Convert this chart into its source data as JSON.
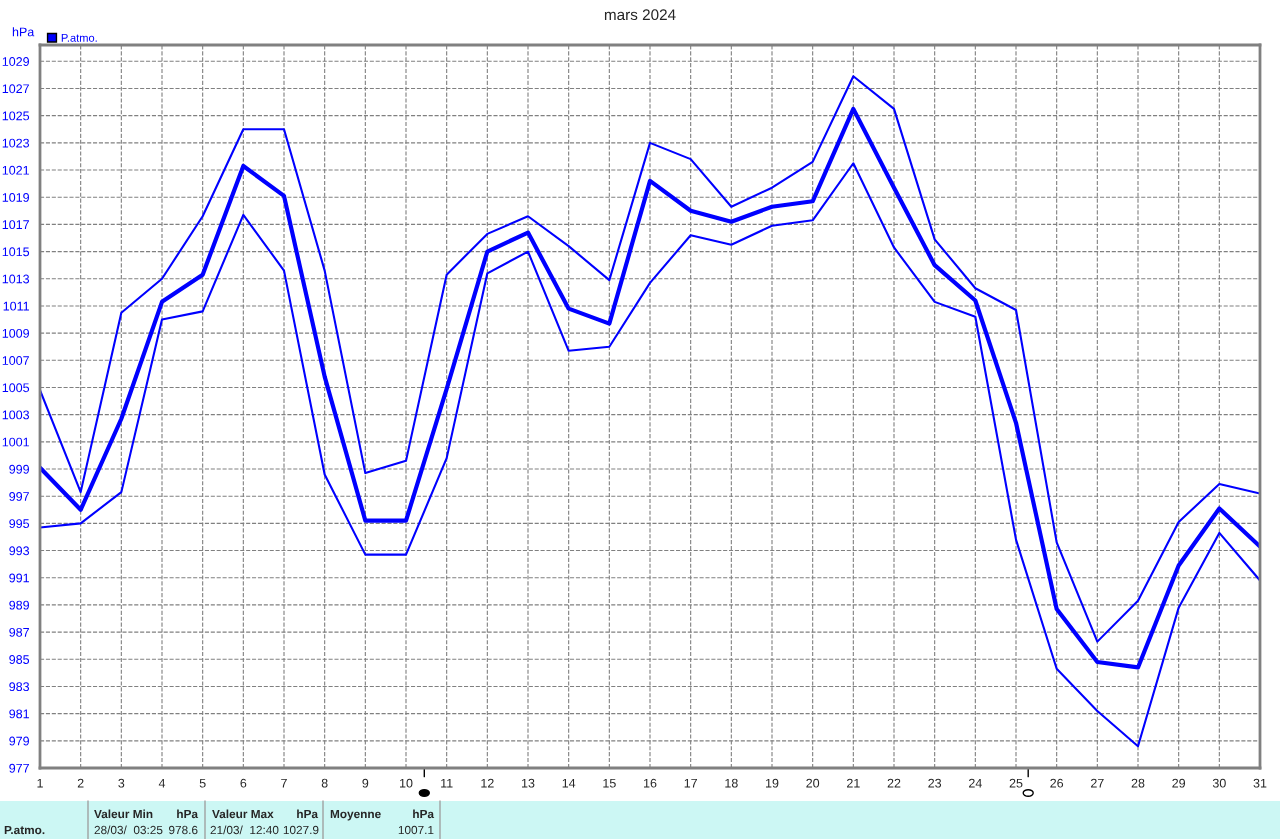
{
  "chart_data": {
    "type": "line",
    "title": "mars 2024",
    "ylabel": "hPa",
    "x": [
      1,
      2,
      3,
      4,
      5,
      6,
      7,
      8,
      9,
      10,
      11,
      12,
      13,
      14,
      15,
      16,
      17,
      18,
      19,
      20,
      21,
      22,
      23,
      24,
      25,
      26,
      27,
      28,
      29,
      30,
      31
    ],
    "series": [
      {
        "color": "#0000ff",
        "values": [
          1004.8,
          997.3,
          1010.5,
          1013.0,
          1017.6,
          1024.0,
          1024.0,
          1013.6,
          998.7,
          999.6,
          1013.3,
          1016.3,
          1017.6,
          1015.4,
          1012.9,
          1023.0,
          1021.8,
          1018.3,
          1019.7,
          1021.6,
          1027.9,
          1025.5,
          1015.9,
          1012.3,
          1010.7,
          993.6,
          986.3,
          989.3,
          995.1,
          997.9,
          997.2
        ]
      },
      {
        "name": "P.atmo.",
        "color": "#0000ff",
        "values": [
          999.1,
          996.0,
          1002.7,
          1011.3,
          1013.3,
          1021.3,
          1019.1,
          1005.8,
          995.2,
          995.2,
          1004.9,
          1015.0,
          1016.4,
          1010.8,
          1009.7,
          1020.2,
          1018.0,
          1017.2,
          1018.3,
          1018.7,
          1025.5,
          1019.7,
          1014.0,
          1011.4,
          1002.4,
          988.7,
          984.8,
          984.4,
          991.9,
          996.1,
          993.3
        ]
      },
      {
        "color": "#0000ff",
        "values": [
          994.7,
          995.0,
          997.3,
          1010.0,
          1010.6,
          1017.7,
          1013.6,
          998.6,
          992.7,
          992.7,
          999.8,
          1013.4,
          1015.0,
          1007.7,
          1008.0,
          1012.7,
          1016.2,
          1015.5,
          1016.9,
          1017.3,
          1021.5,
          1015.3,
          1011.3,
          1010.2,
          993.8,
          984.3,
          981.2,
          978.6,
          988.8,
          994.3,
          990.8
        ]
      }
    ],
    "xlim": [
      1,
      31
    ],
    "xticks": [
      1,
      2,
      3,
      4,
      5,
      6,
      7,
      8,
      9,
      10,
      11,
      12,
      13,
      14,
      15,
      16,
      17,
      18,
      19,
      20,
      21,
      22,
      23,
      24,
      25,
      26,
      27,
      28,
      29,
      30,
      31
    ],
    "ylim": [
      977,
      1030.2
    ],
    "yticks": [
      977,
      979,
      981,
      983,
      985,
      987,
      989,
      991,
      993,
      995,
      997,
      999,
      1001,
      1003,
      1005,
      1007,
      1009,
      1011,
      1013,
      1015,
      1017,
      1019,
      1021,
      1023,
      1025,
      1027,
      1029
    ],
    "grid": true,
    "legend": "top left",
    "marker": "none",
    "line_style": "solid",
    "annotations": [
      "P.atmo.",
      "Valeur Min",
      "hPa",
      "28/03/  03:25",
      "978.6",
      "Valeur Max",
      "hPa",
      "21/03/  12:40",
      "1027.9",
      "Moyenne",
      "hPa",
      "1007.1"
    ]
  }
}
